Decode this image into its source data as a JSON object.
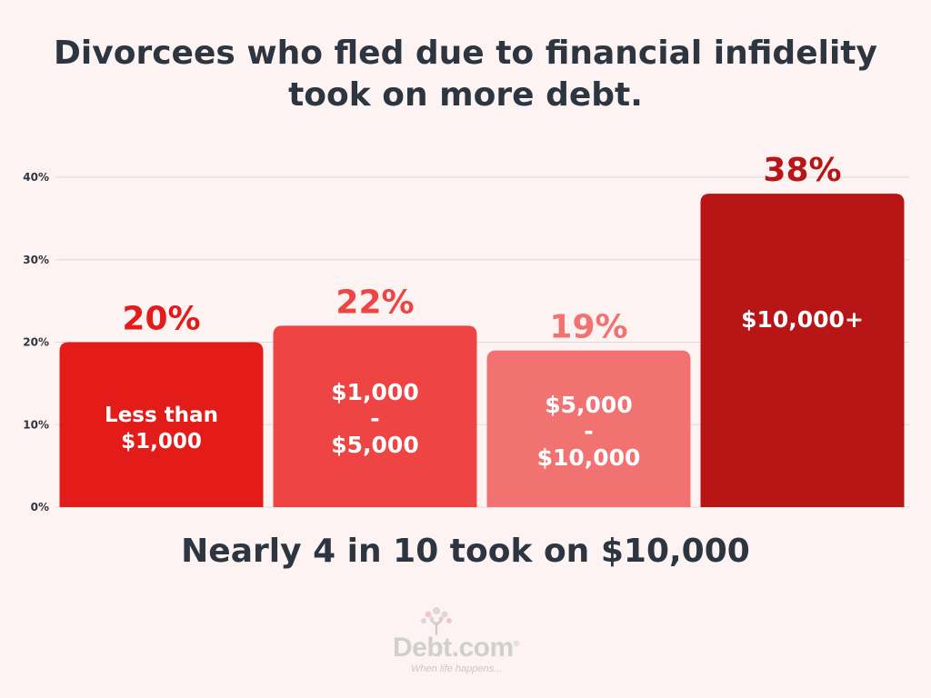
{
  "title_lines": [
    "Divorcees who fled due to financial infidelity",
    "took on more debt."
  ],
  "footer": "Nearly 4 in 10 took on $10,000",
  "logo": {
    "name": "Debt.com",
    "reg_mark": "®",
    "tagline": "When life happens..."
  },
  "chart_data": {
    "type": "bar",
    "title": "Divorcees who fled due to financial infidelity took on more debt.",
    "xlabel": "",
    "ylabel": "",
    "ylim": [
      0,
      40
    ],
    "yticks": [
      "0%",
      "10%",
      "20%",
      "30%",
      "40%"
    ],
    "ytick_values": [
      0,
      10,
      20,
      30,
      40
    ],
    "grid": true,
    "categories": [
      [
        "Less than",
        "$1,000"
      ],
      [
        "$1,000",
        "-",
        "$5,000"
      ],
      [
        "$5,000",
        "-",
        "$10,000"
      ],
      [
        "$10,000+"
      ]
    ],
    "values": [
      20,
      22,
      19,
      38
    ],
    "value_labels": [
      "20%",
      "22%",
      "19%",
      "38%"
    ],
    "colors": [
      "#e41c19",
      "#ef4444",
      "#f27272",
      "#b71516"
    ],
    "label_colors": [
      "#e41c19",
      "#ef4444",
      "#f27272",
      "#b71516"
    ]
  }
}
